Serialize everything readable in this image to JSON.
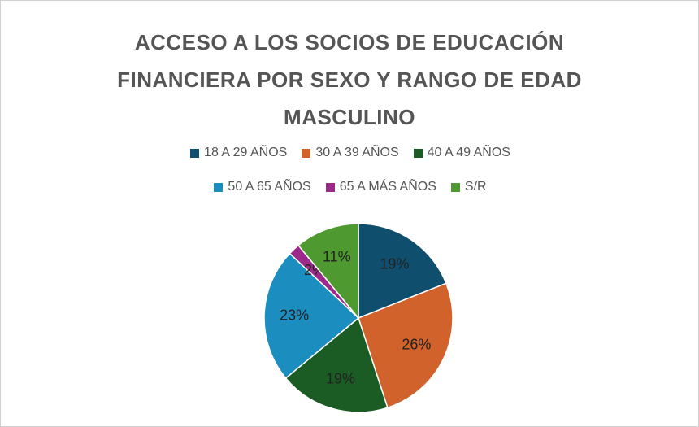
{
  "chart_data": {
    "type": "pie",
    "title": "ACCESO A LOS SOCIOS DE EDUCACIÓN FINANCIERA POR SEXO Y RANGO DE EDAD MASCULINO",
    "categories": [
      "18 A 29 AÑOS",
      "30 A 39 AÑOS",
      "40 A 49 AÑOS",
      "50 A 65 AÑOS",
      "65 A MÁS AÑOS",
      "S/R"
    ],
    "values": [
      19,
      26,
      19,
      23,
      2,
      11
    ],
    "value_labels": [
      "19%",
      "26%",
      "19%",
      "23%",
      "2%",
      "11%"
    ],
    "colors": [
      "#0f4e6d",
      "#d1622b",
      "#1a5c23",
      "#1b8dbf",
      "#9b2a8b",
      "#4f9a30"
    ],
    "legend": "top"
  }
}
